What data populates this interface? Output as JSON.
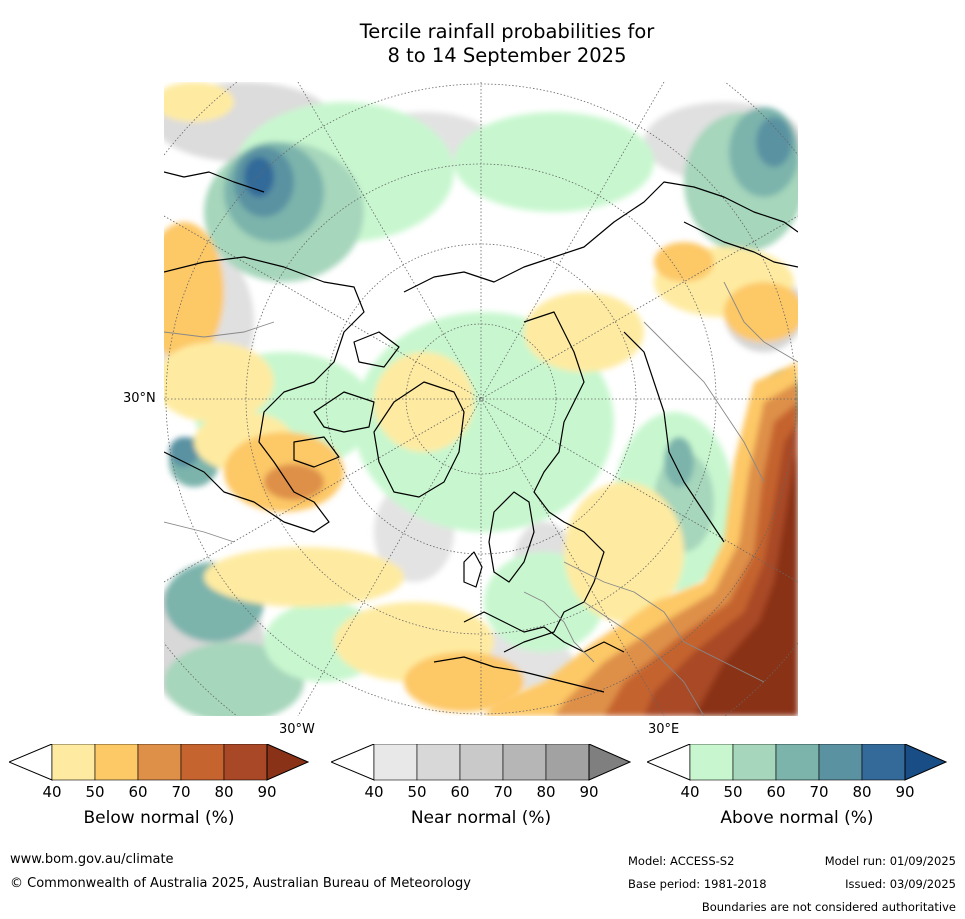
{
  "title_line1": "Tercile rainfall probabilities for",
  "title_line2": "8 to 14 September 2025",
  "map": {
    "lat_label": "30°N",
    "lon_left": "30°W",
    "lon_right": "30°E"
  },
  "colorbars": [
    {
      "name": "below-normal",
      "label": "Below normal (%)",
      "ticks": [
        "40",
        "50",
        "60",
        "70",
        "80",
        "90"
      ],
      "colors": [
        "#ffffff",
        "#feeba1",
        "#fdc866",
        "#de9049",
        "#c5642e",
        "#a94827",
        "#8a3218"
      ]
    },
    {
      "name": "near-normal",
      "label": "Near normal (%)",
      "ticks": [
        "40",
        "50",
        "60",
        "70",
        "80",
        "90"
      ],
      "colors": [
        "#ffffff",
        "#e8e8e8",
        "#d8d8d8",
        "#c9c9c9",
        "#b6b6b6",
        "#a2a2a2",
        "#7f7f7f"
      ]
    },
    {
      "name": "above-normal",
      "label": "Above normal (%)",
      "ticks": [
        "40",
        "50",
        "60",
        "70",
        "80",
        "90"
      ],
      "colors": [
        "#ffffff",
        "#c8f7cf",
        "#a6d6bb",
        "#7cb4ac",
        "#5a92a2",
        "#336a9a",
        "#194d86"
      ]
    }
  ],
  "footer": {
    "website": "www.bom.gov.au/climate",
    "copyright": "© Commonwealth of Australia 2025, Australian Bureau of Meteorology",
    "model": "Model: ACCESS-S2",
    "model_run": "Model run: 01/09/2025",
    "base_period": "Base period: 1981-2018",
    "issued": "Issued: 03/09/2025",
    "boundaries_note": "Boundaries are not considered authoritative"
  }
}
